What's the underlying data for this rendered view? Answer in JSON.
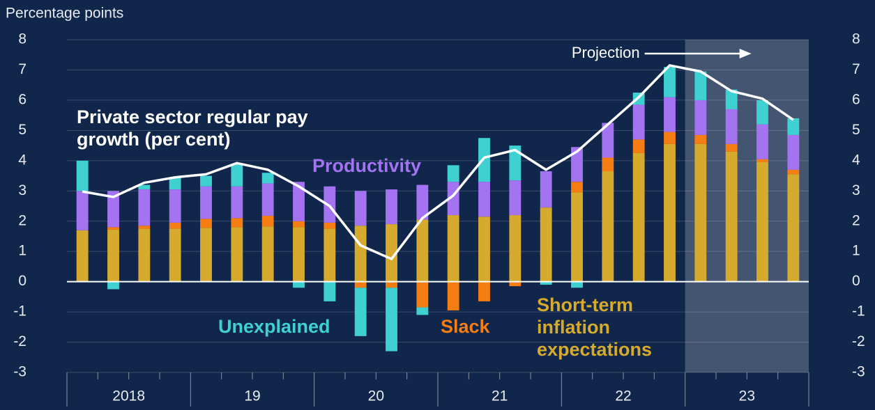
{
  "chart_data": {
    "type": "stacked_bar_line",
    "y_axis_label": "Percentage points",
    "year_labels": [
      "2018",
      "19",
      "20",
      "21",
      "22",
      "23"
    ],
    "ylim": [
      -3,
      8
    ],
    "yticks": [
      -3,
      -2,
      -1,
      0,
      1,
      2,
      3,
      4,
      5,
      6,
      7,
      8
    ],
    "y2lim": [
      -3,
      8
    ],
    "y2ticks": [
      -3,
      -2,
      -1,
      0,
      1,
      2,
      3,
      4,
      5,
      6,
      7,
      8
    ],
    "grid": true,
    "projection": {
      "label": "Projection",
      "start_index": 20
    },
    "series": [
      {
        "name": "Short-term inflation expectations",
        "color": "#d6aa2c",
        "values": [
          1.7,
          1.72,
          1.75,
          1.75,
          1.78,
          1.8,
          1.83,
          1.8,
          1.75,
          1.85,
          1.9,
          2.05,
          2.2,
          2.15,
          2.2,
          2.45,
          2.95,
          3.65,
          4.25,
          4.55,
          4.55,
          4.3,
          3.95,
          3.55
        ]
      },
      {
        "name": "Slack",
        "color": "#f57d12",
        "values": [
          0,
          0.08,
          0.1,
          0.2,
          0.3,
          0.3,
          0.35,
          0.2,
          0.2,
          -0.2,
          -0.2,
          -0.85,
          -0.95,
          -0.65,
          -0.15,
          0,
          0.35,
          0.45,
          0.45,
          0.4,
          0.3,
          0.25,
          0.1,
          0.15
        ]
      },
      {
        "name": "Productivity",
        "color": "#a373f2",
        "values": [
          1.3,
          1.2,
          1.2,
          1.1,
          1.07,
          1.05,
          1.07,
          1.3,
          1.2,
          1.15,
          1.15,
          1.15,
          1.1,
          1.15,
          1.15,
          1.2,
          1.15,
          1.15,
          1.15,
          1.15,
          1.15,
          1.15,
          1.15,
          1.15
        ]
      },
      {
        "name": "Unexplained",
        "color": "#3fd0d2",
        "values": [
          1.0,
          -0.25,
          0.15,
          0.4,
          0.35,
          0.75,
          0.35,
          -0.2,
          -0.65,
          -1.6,
          -2.1,
          -0.25,
          0.55,
          1.45,
          1.15,
          -0.1,
          -0.2,
          0,
          0.4,
          1.0,
          0.95,
          0.65,
          0.8,
          0.55
        ]
      }
    ],
    "line": {
      "name": "Private sector regular pay growth (per cent)",
      "color": "#ffffff",
      "values": [
        2.98,
        2.8,
        3.27,
        3.45,
        3.55,
        3.92,
        3.7,
        3.15,
        2.5,
        1.2,
        0.75,
        2.1,
        2.85,
        4.1,
        4.35,
        3.7,
        4.3,
        5.2,
        6.1,
        7.15,
        6.95,
        6.3,
        6.05,
        5.35
      ]
    }
  }
}
